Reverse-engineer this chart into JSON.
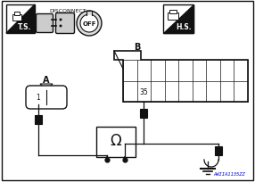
{
  "bg_color": "#ffffff",
  "border_color": "#222222",
  "title_text": "AWIIA1135ZZ",
  "connector_A_label": "A",
  "connector_B_label": "B",
  "pin_number": "35",
  "ts_label": "T.S.",
  "hs_label": "H.S.",
  "disconnect_label": "DISCONNECT",
  "off_label": "OFF",
  "fig_w": 2.86,
  "fig_h": 2.05,
  "dpi": 100
}
